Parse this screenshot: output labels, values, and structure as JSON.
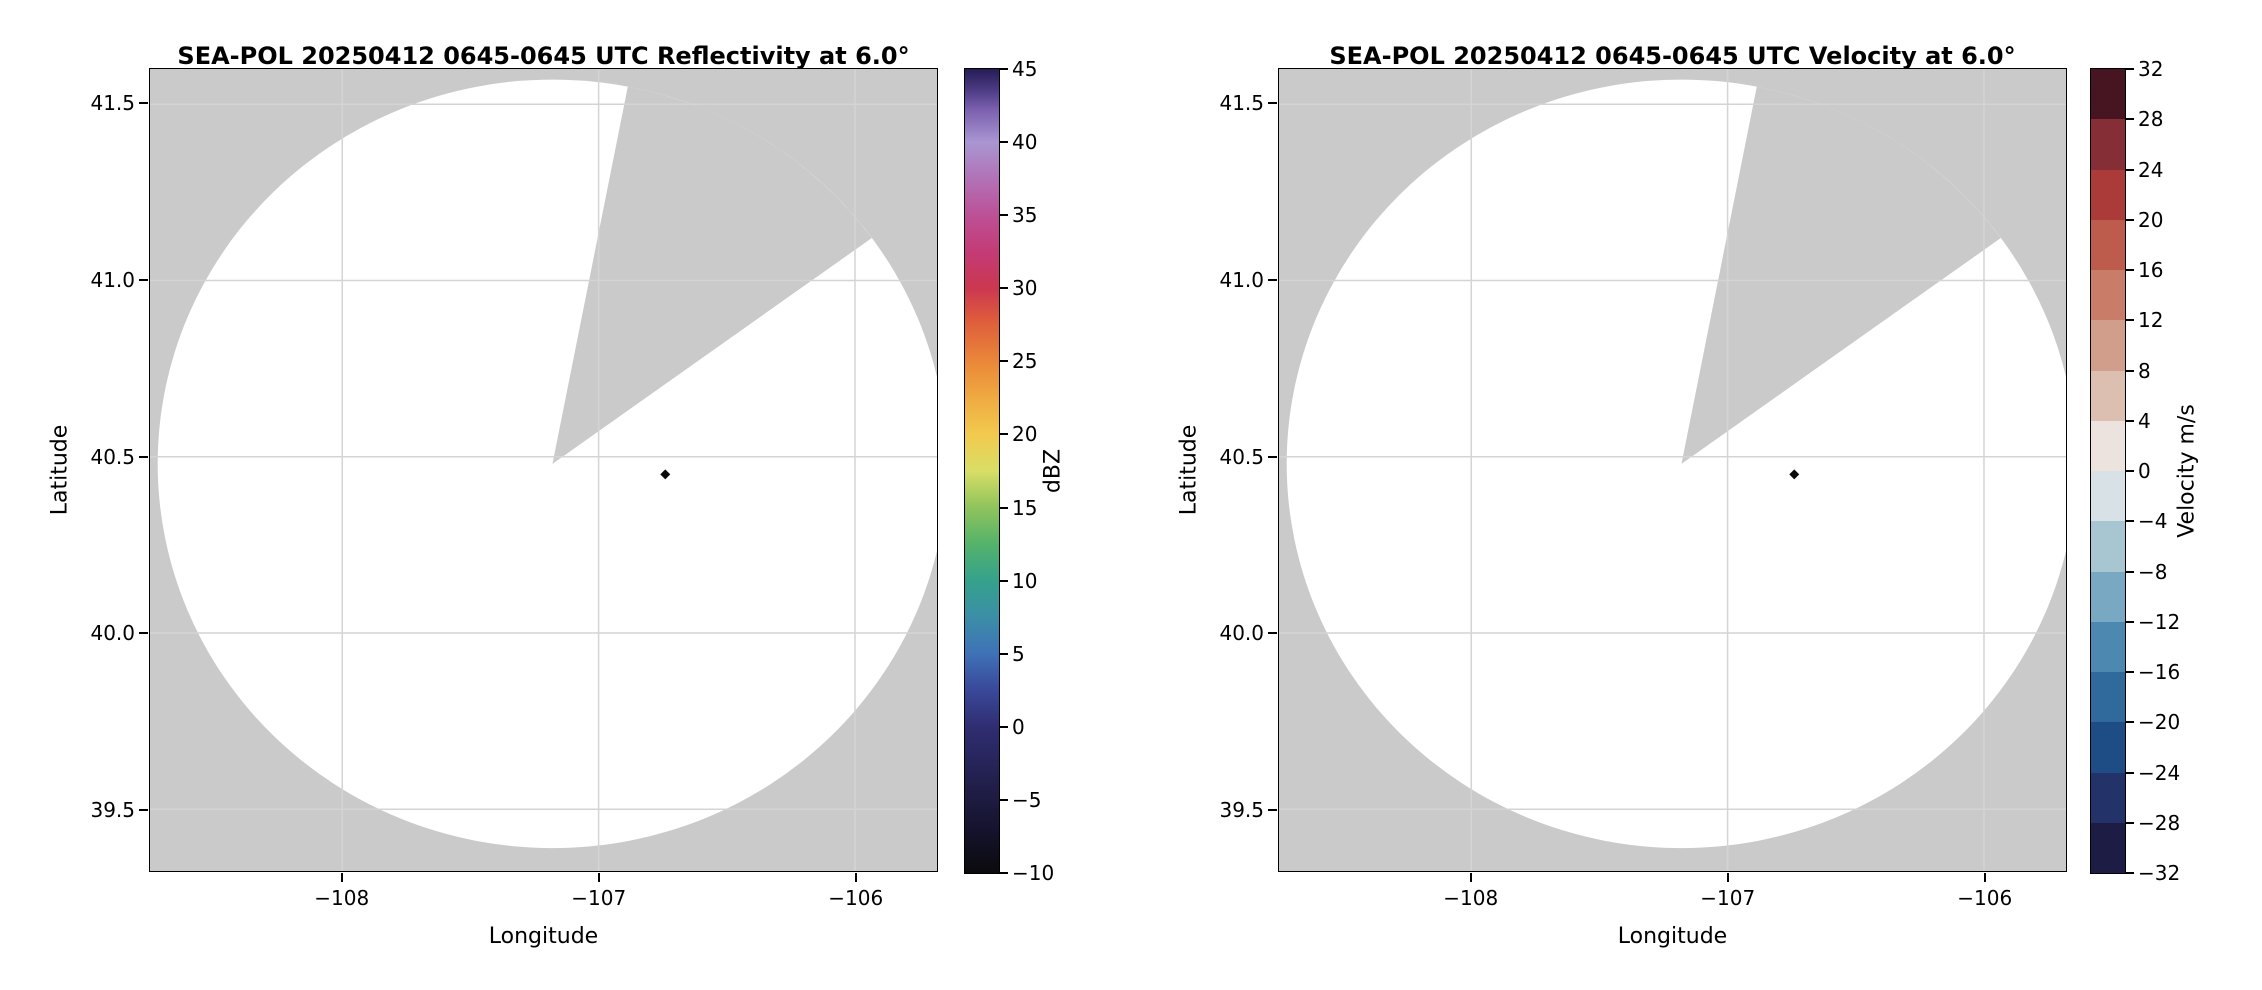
{
  "figure": {
    "background": "#ffffff",
    "mask_color": "#cacaca",
    "grid_color": "#d4d4d4",
    "marker_color": "#0a0a0a",
    "scan_fill": "#ffffff"
  },
  "chart_data": [
    {
      "type": "radar_ppi",
      "field": "reflectivity",
      "title": "SEA-POL 20250412 0645-0645 UTC Reflectivity at 6.0°",
      "xlabel": "Longitude",
      "ylabel": "Latitude",
      "xlim": [
        -108.75,
        -105.68
      ],
      "ylim": [
        39.325,
        41.6
      ],
      "xticks": [
        {
          "value": -108,
          "label": "−108"
        },
        {
          "value": -107,
          "label": "−107"
        },
        {
          "value": -106,
          "label": "−106"
        }
      ],
      "yticks": [
        {
          "value": 39.5,
          "label": "39.5"
        },
        {
          "value": 40.0,
          "label": "40.0"
        },
        {
          "value": 40.5,
          "label": "40.5"
        },
        {
          "value": 41.0,
          "label": "41.0"
        },
        {
          "value": 41.5,
          "label": "41.5"
        }
      ],
      "radar_center": {
        "lon": -107.18,
        "lat": 40.48
      },
      "scan_radius_deg": {
        "lon": 1.54,
        "lat": 1.09
      },
      "missing_sector_azimuth_deg": [
        11,
        54
      ],
      "site_marker": {
        "lon": -106.74,
        "lat": 40.45
      },
      "observed_echoes": [],
      "colorbar": {
        "label": "dBZ",
        "vmin": -10,
        "vmax": 45,
        "style": "continuous",
        "ticks": [
          {
            "value": 45,
            "label": "45"
          },
          {
            "value": 40,
            "label": "40"
          },
          {
            "value": 35,
            "label": "35"
          },
          {
            "value": 30,
            "label": "30"
          },
          {
            "value": 25,
            "label": "25"
          },
          {
            "value": 20,
            "label": "20"
          },
          {
            "value": 15,
            "label": "15"
          },
          {
            "value": 10,
            "label": "10"
          },
          {
            "value": 5,
            "label": "5"
          },
          {
            "value": 0,
            "label": "0"
          },
          {
            "value": -5,
            "label": "−5"
          },
          {
            "value": -10,
            "label": "−10"
          }
        ],
        "gradient_stops": [
          {
            "at": 0.0,
            "color": "#0b0b0d"
          },
          {
            "at": 0.05,
            "color": "#14122b"
          },
          {
            "at": 0.091,
            "color": "#1d1b40"
          },
          {
            "at": 0.182,
            "color": "#302d72"
          },
          {
            "at": 0.23,
            "color": "#3a4a9b"
          },
          {
            "at": 0.273,
            "color": "#3f72b7"
          },
          {
            "at": 0.32,
            "color": "#3b8fa6"
          },
          {
            "at": 0.364,
            "color": "#35a28c"
          },
          {
            "at": 0.41,
            "color": "#55b36a"
          },
          {
            "at": 0.455,
            "color": "#90c45c"
          },
          {
            "at": 0.5,
            "color": "#d8de66"
          },
          {
            "at": 0.545,
            "color": "#f2ca4e"
          },
          {
            "at": 0.59,
            "color": "#efab42"
          },
          {
            "at": 0.636,
            "color": "#ea8739"
          },
          {
            "at": 0.69,
            "color": "#dd5a3d"
          },
          {
            "at": 0.727,
            "color": "#cb3850"
          },
          {
            "at": 0.77,
            "color": "#c43a74"
          },
          {
            "at": 0.818,
            "color": "#bd5096"
          },
          {
            "at": 0.87,
            "color": "#b077bb"
          },
          {
            "at": 0.909,
            "color": "#a996d2"
          },
          {
            "at": 0.95,
            "color": "#7a5fae"
          },
          {
            "at": 0.975,
            "color": "#4b3a82"
          },
          {
            "at": 1.0,
            "color": "#251c55"
          }
        ]
      }
    },
    {
      "type": "radar_ppi",
      "field": "velocity",
      "title": "SEA-POL 20250412 0645-0645 UTC Velocity at 6.0°",
      "xlabel": "Longitude",
      "ylabel": "Latitude",
      "xlim": [
        -108.75,
        -105.68
      ],
      "ylim": [
        39.325,
        41.6
      ],
      "xticks": [
        {
          "value": -108,
          "label": "−108"
        },
        {
          "value": -107,
          "label": "−107"
        },
        {
          "value": -106,
          "label": "−106"
        }
      ],
      "yticks": [
        {
          "value": 39.5,
          "label": "39.5"
        },
        {
          "value": 40.0,
          "label": "40.0"
        },
        {
          "value": 40.5,
          "label": "40.5"
        },
        {
          "value": 41.0,
          "label": "41.0"
        },
        {
          "value": 41.5,
          "label": "41.5"
        }
      ],
      "radar_center": {
        "lon": -107.18,
        "lat": 40.48
      },
      "scan_radius_deg": {
        "lon": 1.54,
        "lat": 1.09
      },
      "missing_sector_azimuth_deg": [
        11,
        54
      ],
      "site_marker": {
        "lon": -106.74,
        "lat": 40.45
      },
      "observed_echoes": [],
      "colorbar": {
        "label": "Velocity m/s",
        "vmin": -32,
        "vmax": 32,
        "style": "discrete",
        "ticks": [
          {
            "value": 32,
            "label": "32"
          },
          {
            "value": 28,
            "label": "28"
          },
          {
            "value": 24,
            "label": "24"
          },
          {
            "value": 20,
            "label": "20"
          },
          {
            "value": 16,
            "label": "16"
          },
          {
            "value": 12,
            "label": "12"
          },
          {
            "value": 8,
            "label": "8"
          },
          {
            "value": 4,
            "label": "4"
          },
          {
            "value": 0,
            "label": "0"
          },
          {
            "value": -4,
            "label": "−4"
          },
          {
            "value": -8,
            "label": "−8"
          },
          {
            "value": -12,
            "label": "−12"
          },
          {
            "value": -16,
            "label": "−16"
          },
          {
            "value": -20,
            "label": "−20"
          },
          {
            "value": -24,
            "label": "−24"
          },
          {
            "value": -28,
            "label": "−28"
          },
          {
            "value": -32,
            "label": "−32"
          }
        ],
        "segment_colors_bottom_to_top": [
          "#1d1c44",
          "#233268",
          "#1e4c85",
          "#30699c",
          "#4d88b0",
          "#79a8c2",
          "#a8c6d2",
          "#d8e2e6",
          "#ece3df",
          "#ddbfb2",
          "#d29e8c",
          "#c97d69",
          "#bd5c4c",
          "#ab3b39",
          "#862e36",
          "#471521"
        ]
      }
    }
  ]
}
